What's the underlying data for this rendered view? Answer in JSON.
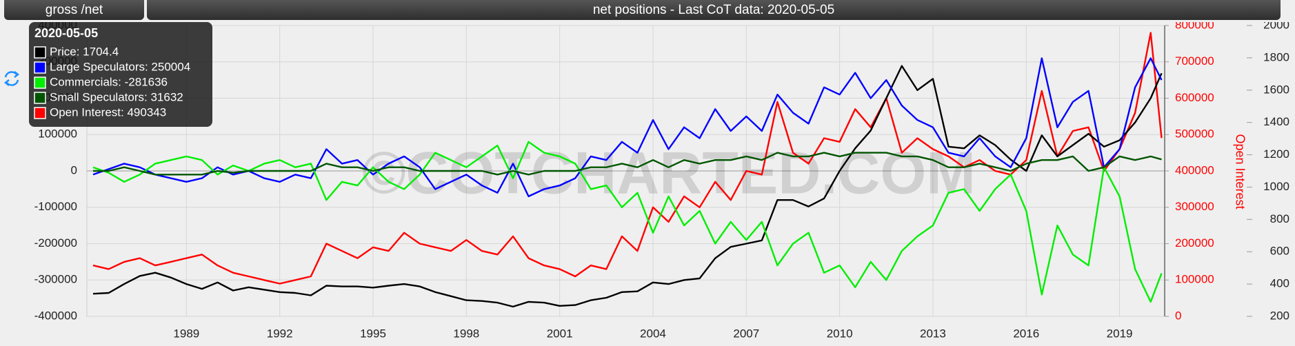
{
  "header": {
    "button": "gross /net",
    "title": "net positions - Last CoT data: 2020-05-05"
  },
  "chart_data": {
    "type": "line",
    "watermark": "©COTCHARTED.COM",
    "y2_label": "Open Interest",
    "x": [
      1986.0,
      1986.5,
      1987.0,
      1987.5,
      1988.0,
      1988.5,
      1989.0,
      1989.5,
      1990.0,
      1990.5,
      1991.0,
      1991.5,
      1992.0,
      1992.5,
      1993.0,
      1993.5,
      1994.0,
      1994.5,
      1995.0,
      1995.5,
      1996.0,
      1996.5,
      1997.0,
      1997.5,
      1998.0,
      1998.5,
      1999.0,
      1999.5,
      2000.0,
      2000.5,
      2001.0,
      2001.5,
      2002.0,
      2002.5,
      2003.0,
      2003.5,
      2004.0,
      2004.5,
      2005.0,
      2005.5,
      2006.0,
      2006.5,
      2007.0,
      2007.5,
      2008.0,
      2008.5,
      2009.0,
      2009.5,
      2010.0,
      2010.5,
      2011.0,
      2011.5,
      2012.0,
      2012.5,
      2013.0,
      2013.5,
      2014.0,
      2014.5,
      2015.0,
      2015.5,
      2016.0,
      2016.5,
      2017.0,
      2017.5,
      2018.0,
      2018.5,
      2019.0,
      2019.5,
      2020.0,
      2020.35
    ],
    "xlim": [
      1985.8,
      2020.45
    ],
    "xticks": [
      1989,
      1992,
      1995,
      1998,
      2001,
      2004,
      2007,
      2010,
      2013,
      2016,
      2019
    ],
    "ylim": [
      -400000,
      400000
    ],
    "yticks": [
      -400000,
      -300000,
      -200000,
      -100000,
      0,
      100000,
      200000,
      300000,
      400000
    ],
    "y2lim": [
      0,
      800000
    ],
    "y2ticks": [
      0,
      100000,
      200000,
      300000,
      400000,
      500000,
      600000,
      700000,
      800000
    ],
    "y3lim": [
      200,
      2000
    ],
    "y3ticks": [
      200,
      400,
      600,
      800,
      1000,
      1200,
      1400,
      1600,
      1800,
      2000
    ],
    "grid": true,
    "series": [
      {
        "name": "Price",
        "color": "#000000",
        "axis": "y3",
        "values": [
          340,
          345,
          400,
          450,
          470,
          440,
          400,
          370,
          410,
          360,
          380,
          365,
          350,
          345,
          330,
          390,
          385,
          385,
          378,
          390,
          400,
          385,
          350,
          325,
          300,
          295,
          285,
          260,
          290,
          285,
          265,
          270,
          300,
          315,
          350,
          355,
          410,
          400,
          425,
          435,
          560,
          630,
          650,
          670,
          920,
          920,
          880,
          930,
          1100,
          1240,
          1350,
          1550,
          1750,
          1600,
          1670,
          1250,
          1240,
          1320,
          1260,
          1170,
          1100,
          1320,
          1190,
          1260,
          1330,
          1250,
          1290,
          1400,
          1550,
          1704.4
        ]
      },
      {
        "name": "Large Speculators",
        "color": "#0000ff",
        "values": [
          -10000,
          5000,
          20000,
          10000,
          -10000,
          -20000,
          -30000,
          -20000,
          10000,
          -10000,
          0,
          -20000,
          -30000,
          -10000,
          -20000,
          60000,
          20000,
          30000,
          -10000,
          20000,
          40000,
          10000,
          -50000,
          -30000,
          -10000,
          -40000,
          -60000,
          20000,
          -70000,
          -50000,
          -40000,
          -20000,
          40000,
          30000,
          80000,
          50000,
          140000,
          60000,
          120000,
          90000,
          170000,
          110000,
          150000,
          110000,
          210000,
          160000,
          130000,
          230000,
          210000,
          270000,
          200000,
          250000,
          180000,
          140000,
          120000,
          50000,
          40000,
          90000,
          40000,
          10000,
          90000,
          310000,
          120000,
          190000,
          220000,
          10000,
          60000,
          230000,
          310000,
          250004
        ]
      },
      {
        "name": "Commercials",
        "color": "#00ee00",
        "values": [
          10000,
          -5000,
          -30000,
          -10000,
          20000,
          30000,
          40000,
          30000,
          -10000,
          15000,
          0,
          20000,
          30000,
          10000,
          20000,
          -80000,
          -30000,
          -40000,
          10000,
          -30000,
          -50000,
          -10000,
          50000,
          30000,
          10000,
          40000,
          70000,
          -20000,
          80000,
          50000,
          40000,
          20000,
          -50000,
          -40000,
          -100000,
          -60000,
          -170000,
          -70000,
          -150000,
          -110000,
          -200000,
          -140000,
          -190000,
          -140000,
          -260000,
          -200000,
          -170000,
          -280000,
          -260000,
          -320000,
          -250000,
          -300000,
          -220000,
          -180000,
          -150000,
          -60000,
          -50000,
          -110000,
          -50000,
          -10000,
          -110000,
          -340000,
          -150000,
          -230000,
          -260000,
          10000,
          -70000,
          -270000,
          -360000,
          -281636
        ]
      },
      {
        "name": "Small Speculators",
        "color": "#005500",
        "values": [
          0,
          0,
          10000,
          0,
          -10000,
          -10000,
          -10000,
          -10000,
          0,
          -5000,
          0,
          0,
          0,
          0,
          0,
          20000,
          10000,
          10000,
          0,
          10000,
          10000,
          0,
          0,
          0,
          0,
          0,
          -10000,
          0,
          -10000,
          0,
          0,
          0,
          10000,
          10000,
          20000,
          10000,
          30000,
          10000,
          30000,
          20000,
          30000,
          30000,
          40000,
          30000,
          50000,
          40000,
          40000,
          50000,
          40000,
          50000,
          50000,
          50000,
          40000,
          40000,
          30000,
          10000,
          10000,
          20000,
          10000,
          0,
          20000,
          30000,
          30000,
          40000,
          0,
          10000,
          40000,
          30000,
          40000,
          31632
        ]
      },
      {
        "name": "Open Interest",
        "color": "#ff0000",
        "axis": "y2",
        "values": [
          140000,
          130000,
          150000,
          160000,
          140000,
          150000,
          160000,
          170000,
          140000,
          120000,
          110000,
          100000,
          90000,
          100000,
          110000,
          200000,
          180000,
          160000,
          190000,
          180000,
          230000,
          200000,
          190000,
          180000,
          210000,
          180000,
          170000,
          220000,
          160000,
          140000,
          130000,
          110000,
          140000,
          130000,
          220000,
          180000,
          300000,
          260000,
          330000,
          300000,
          370000,
          320000,
          400000,
          390000,
          590000,
          450000,
          420000,
          490000,
          480000,
          570000,
          520000,
          600000,
          450000,
          490000,
          460000,
          440000,
          410000,
          430000,
          400000,
          390000,
          430000,
          620000,
          440000,
          510000,
          520000,
          400000,
          460000,
          560000,
          780000,
          490343
        ]
      }
    ],
    "tooltip": {
      "date": "2020-05-05",
      "items": [
        "Price: 1704.4",
        "Large Speculators: 250004",
        "Commercials: -281636",
        "Small Speculators: 31632",
        "Open Interest: 490343"
      ]
    }
  }
}
